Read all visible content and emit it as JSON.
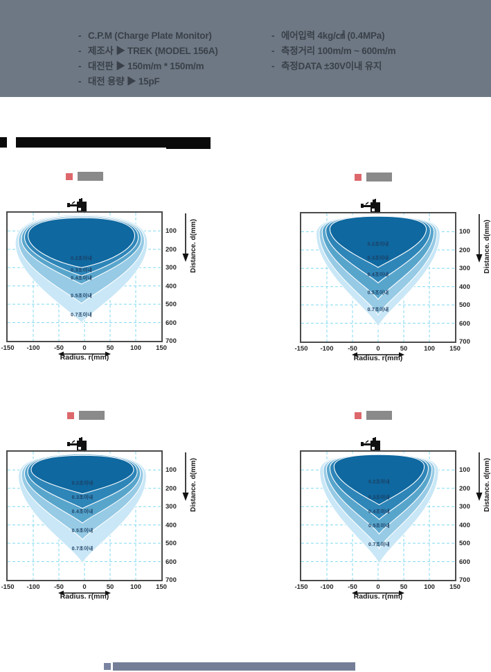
{
  "header": {
    "bg_color": "#6e7884",
    "bullet": "-",
    "left_items": [
      "C.P.M (Charge Plate Monitor)",
      "제조사  ▶ TREK (MODEL 156A)",
      "대전판  ▶ 150m/m * 150m/m",
      "대전 용량  ▶ 15pF"
    ],
    "right_items": [
      "에어입력  4kg/㎠ (0.4MPa)",
      "측정거리  100m/m ~ 600m/m",
      "측정DATA ±30V이내 유지"
    ]
  },
  "section_title": {
    "redacted": true,
    "bar_color": "#0a0a0a"
  },
  "legend": {
    "marker_color": "#dd686c",
    "label_box_color": "#8a8a8a",
    "label_redacted": true
  },
  "axes": {
    "xlabel": "Radius. r(mm)",
    "ylabel": "Distance. d(mm)",
    "x_ticks": [
      "-150",
      "-100",
      "-50",
      "0",
      "50",
      "100",
      "150"
    ],
    "y_ticks": [
      "100",
      "200",
      "300",
      "400",
      "500",
      "600",
      "700"
    ],
    "xlim_mm": [
      -150,
      150
    ],
    "ylim_mm": [
      0,
      700
    ],
    "grid": "dashed",
    "grid_color": "#7fd9f1",
    "radius_arrow_range_mm": [
      -50,
      50
    ]
  },
  "chart_data": [
    {
      "type": "contour",
      "position": "top-left",
      "center_offset_mm": -6,
      "contours": [
        {
          "label": "0.2초이내",
          "color": "#0f689f",
          "max_radius_mm": 104,
          "top_d_mm": 28,
          "widest_d_mm": 125,
          "max_depth_mm": 300,
          "tip_halfwidth_mm": 55,
          "label_d_mm": 258
        },
        {
          "label": "0.3초이내",
          "color": "#2e85b8",
          "max_radius_mm": 111,
          "top_d_mm": 22,
          "widest_d_mm": 135,
          "max_depth_mm": 345,
          "tip_halfwidth_mm": 40,
          "label_d_mm": 322
        },
        {
          "label": "0.4초이내",
          "color": "#58a5cc",
          "max_radius_mm": 117,
          "top_d_mm": 17,
          "widest_d_mm": 145,
          "max_depth_mm": 390,
          "tip_halfwidth_mm": 30,
          "label_d_mm": 366
        },
        {
          "label": "0.5초이내",
          "color": "#96cae5",
          "max_radius_mm": 123,
          "top_d_mm": 12,
          "widest_d_mm": 155,
          "max_depth_mm": 495,
          "tip_halfwidth_mm": 28,
          "label_d_mm": 462
        },
        {
          "label": "0.7초이내",
          "color": "#c9e7f6",
          "max_radius_mm": 129,
          "top_d_mm": 7,
          "widest_d_mm": 165,
          "max_depth_mm": 600,
          "tip_halfwidth_mm": 28,
          "label_d_mm": 565
        }
      ]
    },
    {
      "type": "contour",
      "position": "top-right",
      "center_offset_mm": 0,
      "contours": [
        {
          "label": "0.2초이내",
          "color": "#0f689f",
          "max_radius_mm": 94,
          "top_d_mm": 16,
          "widest_d_mm": 85,
          "max_depth_mm": 295,
          "tip_halfwidth_mm": 22,
          "label_d_mm": 175
        },
        {
          "label": "0.3초이내",
          "color": "#2e85b8",
          "max_radius_mm": 102,
          "top_d_mm": 12,
          "widest_d_mm": 93,
          "max_depth_mm": 380,
          "tip_halfwidth_mm": 19,
          "label_d_mm": 252
        },
        {
          "label": "0.4초이내",
          "color": "#58a5cc",
          "max_radius_mm": 109,
          "top_d_mm": 9,
          "widest_d_mm": 100,
          "max_depth_mm": 470,
          "tip_halfwidth_mm": 17,
          "label_d_mm": 342
        },
        {
          "label": "0.5초이내",
          "color": "#96cae5",
          "max_radius_mm": 115,
          "top_d_mm": 7,
          "widest_d_mm": 106,
          "max_depth_mm": 555,
          "tip_halfwidth_mm": 15,
          "label_d_mm": 440
        },
        {
          "label": "0.7초이내",
          "color": "#c9e7f6",
          "max_radius_mm": 121,
          "top_d_mm": 5,
          "widest_d_mm": 112,
          "max_depth_mm": 620,
          "tip_halfwidth_mm": 14,
          "label_d_mm": 533
        }
      ]
    },
    {
      "type": "contour",
      "position": "bottom-left",
      "center_offset_mm": -4,
      "contours": [
        {
          "label": "0.2초이내",
          "color": "#0f689f",
          "max_radius_mm": 100,
          "top_d_mm": 20,
          "widest_d_mm": 100,
          "max_depth_mm": 230,
          "tip_halfwidth_mm": 30,
          "label_d_mm": 180
        },
        {
          "label": "0.3초이내",
          "color": "#2e85b8",
          "max_radius_mm": 107,
          "top_d_mm": 14,
          "widest_d_mm": 110,
          "max_depth_mm": 310,
          "tip_halfwidth_mm": 24,
          "label_d_mm": 257
        },
        {
          "label": "0.4초이내",
          "color": "#58a5cc",
          "max_radius_mm": 113,
          "top_d_mm": 10,
          "widest_d_mm": 118,
          "max_depth_mm": 390,
          "tip_halfwidth_mm": 20,
          "label_d_mm": 334
        },
        {
          "label": "0.5초이내",
          "color": "#96cae5",
          "max_radius_mm": 119,
          "top_d_mm": 7,
          "widest_d_mm": 126,
          "max_depth_mm": 480,
          "tip_halfwidth_mm": 18,
          "label_d_mm": 438
        },
        {
          "label": "0.7초이내",
          "color": "#c9e7f6",
          "max_radius_mm": 125,
          "top_d_mm": 5,
          "widest_d_mm": 134,
          "max_depth_mm": 610,
          "tip_halfwidth_mm": 16,
          "label_d_mm": 538
        }
      ]
    },
    {
      "type": "contour",
      "position": "bottom-right",
      "center_offset_mm": 2,
      "contours": [
        {
          "label": "0.2초이내",
          "color": "#0f689f",
          "max_radius_mm": 88,
          "top_d_mm": 16,
          "widest_d_mm": 80,
          "max_depth_mm": 290,
          "tip_halfwidth_mm": 22,
          "label_d_mm": 172
        },
        {
          "label": "0.3초이내",
          "color": "#2e85b8",
          "max_radius_mm": 96,
          "top_d_mm": 12,
          "widest_d_mm": 88,
          "max_depth_mm": 370,
          "tip_halfwidth_mm": 18,
          "label_d_mm": 257
        },
        {
          "label": "0.4초이내",
          "color": "#58a5cc",
          "max_radius_mm": 103,
          "top_d_mm": 9,
          "widest_d_mm": 95,
          "max_depth_mm": 450,
          "tip_halfwidth_mm": 15,
          "label_d_mm": 334
        },
        {
          "label": "0.5초이내",
          "color": "#96cae5",
          "max_radius_mm": 109,
          "top_d_mm": 7,
          "widest_d_mm": 100,
          "max_depth_mm": 530,
          "tip_halfwidth_mm": 13,
          "label_d_mm": 413
        },
        {
          "label": "0.7초이내",
          "color": "#c9e7f6",
          "max_radius_mm": 116,
          "top_d_mm": 5,
          "widest_d_mm": 106,
          "max_depth_mm": 615,
          "tip_halfwidth_mm": 12,
          "label_d_mm": 514
        }
      ]
    }
  ],
  "footer": {
    "redacted": true,
    "bar_color": "#747e96",
    "marker_color": "#7a84a2"
  }
}
